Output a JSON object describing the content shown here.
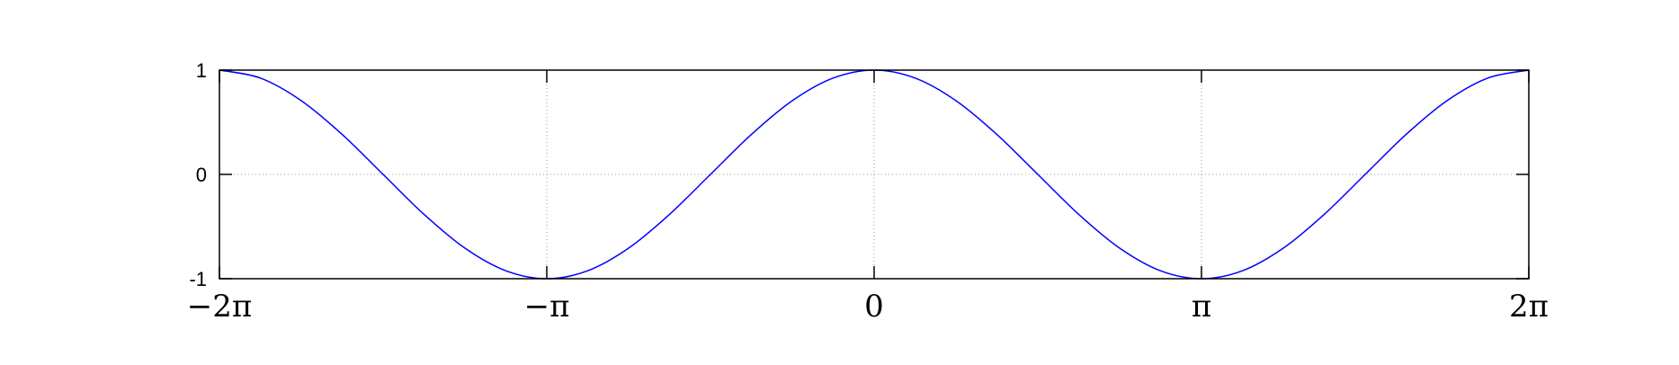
{
  "chart_data": {
    "type": "line",
    "title": "",
    "xlabel": "",
    "ylabel": "",
    "xlim": [
      -6.283185307,
      6.283185307
    ],
    "ylim": [
      -1,
      1
    ],
    "grid": true,
    "x_ticks": [
      -6.283185307,
      -3.141592654,
      0,
      3.141592654,
      6.283185307
    ],
    "x_tick_labels": [
      "−2π",
      "−π",
      "0",
      "π",
      "2π"
    ],
    "y_ticks": [
      -1,
      0,
      1
    ],
    "y_tick_labels": [
      "-1",
      "0",
      "1"
    ],
    "series": [
      {
        "color": "#0000ff",
        "x": [
          -6.2832,
          -5.8905,
          -5.4978,
          -5.1051,
          -4.7124,
          -4.3197,
          -3.927,
          -3.5343,
          -3.1416,
          -2.7489,
          -2.3562,
          -1.9635,
          -1.5708,
          -1.1781,
          -0.7854,
          -0.3927,
          0,
          0.3927,
          0.7854,
          1.1781,
          1.5708,
          1.9635,
          2.3562,
          2.7489,
          3.1416,
          3.5343,
          3.927,
          4.3197,
          4.7124,
          5.1051,
          5.4978,
          5.8905,
          6.2832
        ],
        "y": [
          1,
          0.924,
          0.707,
          0.383,
          0,
          -0.383,
          -0.707,
          -0.924,
          -1,
          -0.924,
          -0.707,
          -0.383,
          0,
          0.383,
          0.707,
          0.924,
          1,
          0.924,
          0.707,
          0.383,
          0,
          -0.383,
          -0.707,
          -0.924,
          -1,
          -0.924,
          -0.707,
          -0.383,
          0,
          0.383,
          0.707,
          0.924,
          1
        ]
      }
    ]
  }
}
